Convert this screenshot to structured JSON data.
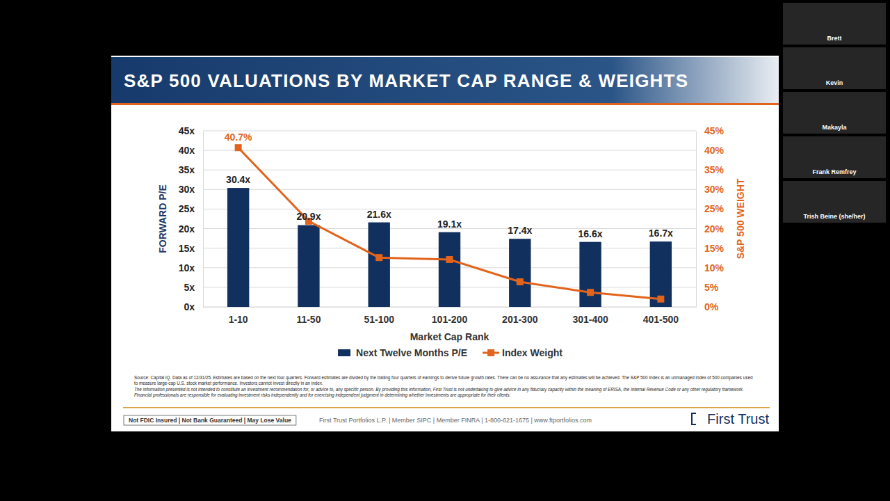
{
  "chart_data": {
    "type": "bar",
    "title": "S&P 500 VALUATIONS BY MARKET CAP RANGE & WEIGHTS",
    "xlabel": "Market Cap Rank",
    "ylabel": "FORWARD P/E",
    "y2label": "S&P 500 WEIGHT",
    "categories": [
      "1-10",
      "11-50",
      "51-100",
      "101-200",
      "201-300",
      "301-400",
      "401-500"
    ],
    "series": [
      {
        "name": "Next Twelve Months P/E",
        "type": "bar",
        "color": "#12305e",
        "values": [
          30.4,
          20.9,
          21.6,
          19.1,
          17.4,
          16.6,
          16.7
        ],
        "value_labels": [
          "30.4x",
          "20.9x",
          "21.6x",
          "19.1x",
          "17.4x",
          "16.6x",
          "16.7x"
        ]
      },
      {
        "name": "Index Weight",
        "type": "line",
        "axis": "y2",
        "color": "#e2641c",
        "marker": "square",
        "values": [
          40.7,
          21.9,
          12.6,
          12.1,
          6.4,
          3.7,
          2.0
        ],
        "value_labels": [
          "40.7%",
          null,
          null,
          null,
          null,
          null,
          null
        ]
      }
    ],
    "ylim": [
      0,
      45
    ],
    "yticks": [
      {
        "value": 0,
        "label": "0x"
      },
      {
        "value": 5,
        "label": "5x"
      },
      {
        "value": 10,
        "label": "10x"
      },
      {
        "value": 15,
        "label": "15x"
      },
      {
        "value": 20,
        "label": "20x"
      },
      {
        "value": 25,
        "label": "25x"
      },
      {
        "value": 30,
        "label": "30x"
      },
      {
        "value": 35,
        "label": "35x"
      },
      {
        "value": 40,
        "label": "40x"
      },
      {
        "value": 45,
        "label": "45x"
      }
    ],
    "y2lim": [
      0,
      45
    ],
    "y2ticks": [
      {
        "value": 0,
        "label": "0%"
      },
      {
        "value": 5,
        "label": "5%"
      },
      {
        "value": 10,
        "label": "10%"
      },
      {
        "value": 15,
        "label": "15%"
      },
      {
        "value": 20,
        "label": "20%"
      },
      {
        "value": 25,
        "label": "25%"
      },
      {
        "value": 30,
        "label": "30%"
      },
      {
        "value": 35,
        "label": "35%"
      },
      {
        "value": 40,
        "label": "40%"
      },
      {
        "value": 45,
        "label": "45%"
      }
    ],
    "grid": true,
    "legend": "bottom",
    "data_labels": true
  },
  "notes": {
    "source": "Source: Capital IQ. Data as of 12/31/25. Estimates are based on the next four quarters. Forward estimates are divided by the trailing four quarters of earnings to derive future growth rates. There can be no assurance that any estimates will be achieved. The S&P 500 Index is an unmanaged index of 500 companies used to measure large-cap U.S. stock market performance. Investors cannot invest directly in an index.",
    "disclaimer": "The information presented is not intended to constitute an investment recommendation for, or advice to, any specific person. By providing this information, First Trust is not undertaking to give advice in any fiduciary capacity within the meaning of ERISA, the Internal Revenue Code or any other regulatory framework. Financial professionals are responsible for evaluating investment risks independently and for exercising independent judgment in determining whether investments are appropriate for their clients."
  },
  "footer": {
    "badge": "Not FDIC Insured | Not Bank Guaranteed | May Lose Value",
    "center": "First Trust Portfolios L.P. | Member SIPC | Member FINRA | 1-800-621-1675 | www.ftportfolios.com",
    "logo": "First Trust"
  },
  "participants": [
    "Brett",
    "Kevin",
    "Makayla",
    "Frank Remfrey",
    "Trish Beine (she/her)"
  ]
}
